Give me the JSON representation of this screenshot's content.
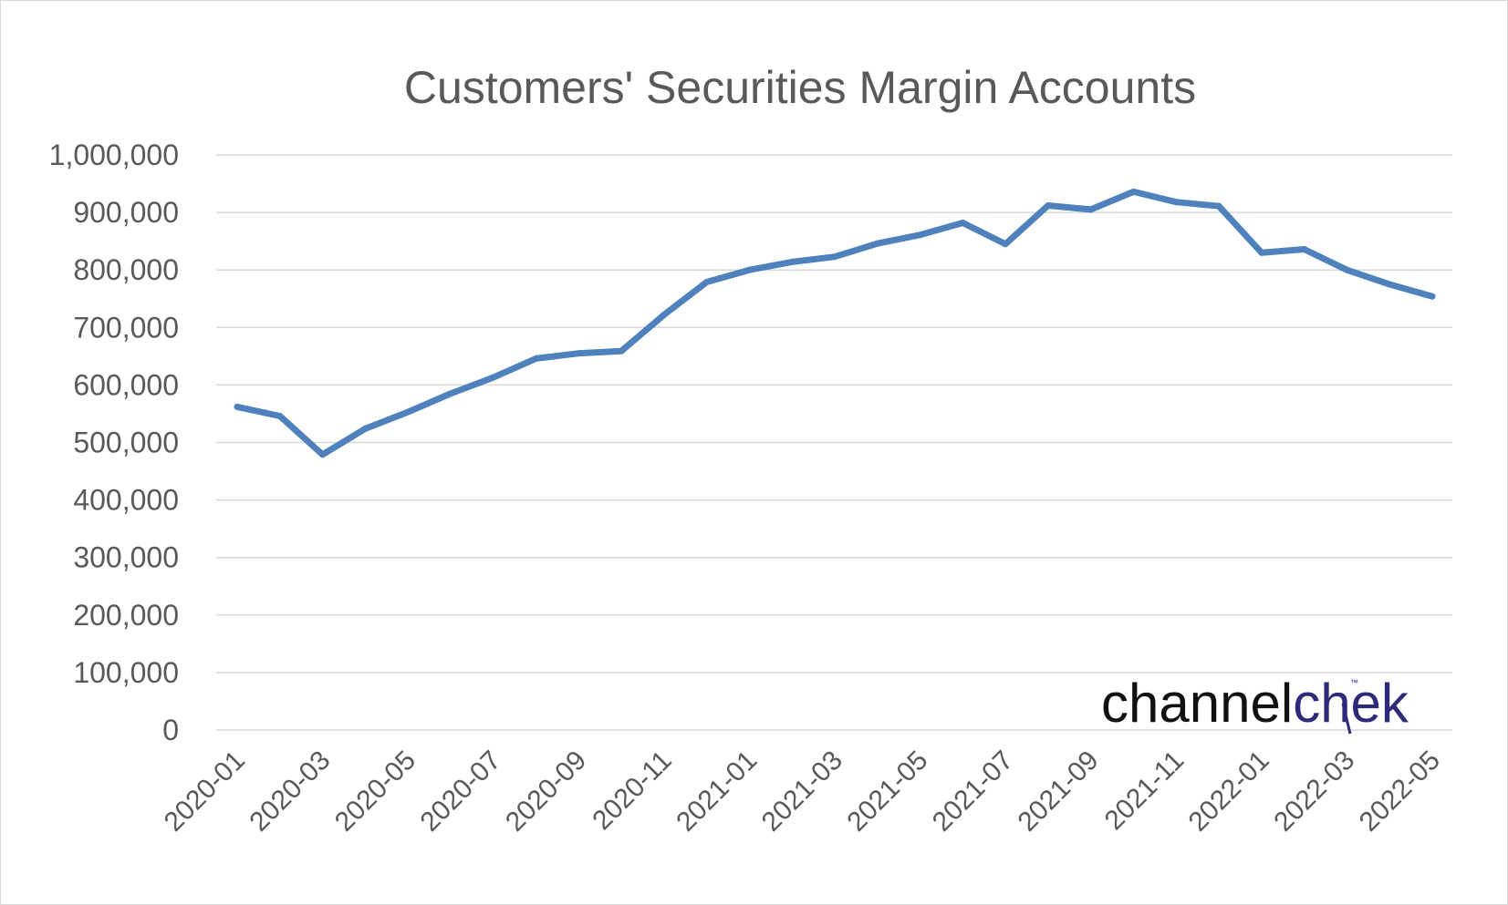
{
  "chart_data": {
    "type": "line",
    "title": "Customers' Securities Margin Accounts",
    "xlabel": "",
    "ylabel": "",
    "ylim": [
      0,
      1000000
    ],
    "yticks": [
      0,
      100000,
      200000,
      300000,
      400000,
      500000,
      600000,
      700000,
      800000,
      900000,
      1000000
    ],
    "ytick_labels": [
      "0",
      "100,000",
      "200,000",
      "300,000",
      "400,000",
      "500,000",
      "600,000",
      "700,000",
      "800,000",
      "900,000",
      "1,000,000"
    ],
    "x_tick_labels": [
      "2020-01",
      "2020-03",
      "2020-05",
      "2020-07",
      "2020-09",
      "2020-11",
      "2021-01",
      "2021-03",
      "2021-05",
      "2021-07",
      "2021-09",
      "2021-11",
      "2022-01",
      "2022-03",
      "2022-05"
    ],
    "grid": true,
    "legend": "none",
    "series_color": "#4f81bd",
    "x": [
      "2020-01",
      "2020-02",
      "2020-03",
      "2020-04",
      "2020-05",
      "2020-06",
      "2020-07",
      "2020-08",
      "2020-09",
      "2020-10",
      "2020-11",
      "2020-12",
      "2021-01",
      "2021-02",
      "2021-03",
      "2021-04",
      "2021-05",
      "2021-06",
      "2021-07",
      "2021-08",
      "2021-09",
      "2021-10",
      "2021-11",
      "2021-12",
      "2022-01",
      "2022-02",
      "2022-03",
      "2022-04",
      "2022-05"
    ],
    "series": [
      {
        "values": [
          562000,
          546000,
          479000,
          524000,
          553000,
          585000,
          613000,
          646000,
          655000,
          659000,
          722000,
          779000,
          800000,
          814000,
          823000,
          846000,
          861000,
          882000,
          845000,
          912000,
          905000,
          936000,
          918000,
          911000,
          830000,
          836000,
          800000,
          775000,
          754000
        ]
      }
    ]
  },
  "watermark": {
    "part1": "channel",
    "part2": "chek",
    "mark": "™"
  }
}
